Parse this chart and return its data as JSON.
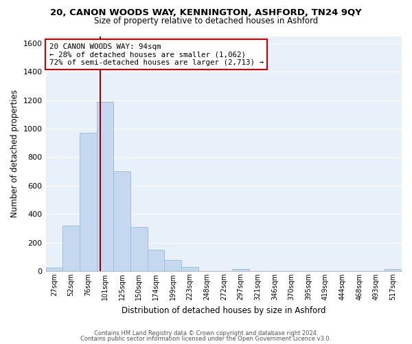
{
  "title": "20, CANON WOODS WAY, KENNINGTON, ASHFORD, TN24 9QY",
  "subtitle": "Size of property relative to detached houses in Ashford",
  "xlabel": "Distribution of detached houses by size in Ashford",
  "ylabel": "Number of detached properties",
  "bar_labels": [
    "27sqm",
    "52sqm",
    "76sqm",
    "101sqm",
    "125sqm",
    "150sqm",
    "174sqm",
    "199sqm",
    "223sqm",
    "248sqm",
    "272sqm",
    "297sqm",
    "321sqm",
    "346sqm",
    "370sqm",
    "395sqm",
    "419sqm",
    "444sqm",
    "468sqm",
    "493sqm",
    "517sqm"
  ],
  "bar_values": [
    25,
    320,
    970,
    1190,
    700,
    310,
    150,
    75,
    30,
    0,
    0,
    15,
    0,
    0,
    0,
    0,
    0,
    0,
    0,
    0,
    15
  ],
  "bar_color": "#c5d8f0",
  "bar_edge_color": "#9bbfde",
  "vline_color": "#990000",
  "vline_x_bar_index": 2.72,
  "annotation_text": "20 CANON WOODS WAY: 94sqm\n← 28% of detached houses are smaller (1,062)\n72% of semi-detached houses are larger (2,713) →",
  "annotation_box_facecolor": "#ffffff",
  "annotation_box_edgecolor": "#cc0000",
  "ylim": [
    0,
    1650
  ],
  "yticks": [
    0,
    200,
    400,
    600,
    800,
    1000,
    1200,
    1400,
    1600
  ],
  "footnote1": "Contains HM Land Registry data © Crown copyright and database right 2024.",
  "footnote2": "Contains public sector information licensed under the Open Government Licence v3.0.",
  "background_color": "#ffffff",
  "plot_bg_color": "#e8f0fa",
  "grid_color": "#ffffff"
}
